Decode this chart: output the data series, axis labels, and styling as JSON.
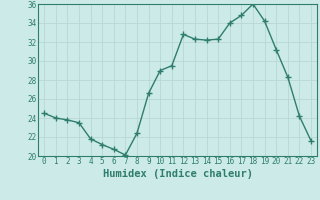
{
  "x": [
    0,
    1,
    2,
    3,
    4,
    5,
    6,
    7,
    8,
    9,
    10,
    11,
    12,
    13,
    14,
    15,
    16,
    17,
    18,
    19,
    20,
    21,
    22,
    23
  ],
  "y": [
    24.5,
    24.0,
    23.8,
    23.5,
    21.8,
    21.2,
    20.7,
    20.1,
    22.4,
    26.6,
    29.0,
    29.5,
    32.8,
    32.3,
    32.2,
    32.3,
    34.0,
    34.8,
    36.0,
    34.2,
    31.2,
    28.3,
    24.2,
    21.6
  ],
  "xlabel": "Humidex (Indice chaleur)",
  "ylim": [
    20,
    36
  ],
  "xlim": [
    -0.5,
    23.5
  ],
  "yticks": [
    20,
    22,
    24,
    26,
    28,
    30,
    32,
    34,
    36
  ],
  "xticks": [
    0,
    1,
    2,
    3,
    4,
    5,
    6,
    7,
    8,
    9,
    10,
    11,
    12,
    13,
    14,
    15,
    16,
    17,
    18,
    19,
    20,
    21,
    22,
    23
  ],
  "xtick_labels": [
    "0",
    "1",
    "2",
    "3",
    "4",
    "5",
    "6",
    "7",
    "8",
    "9",
    "10",
    "11",
    "12",
    "13",
    "14",
    "15",
    "16",
    "17",
    "18",
    "19",
    "20",
    "21",
    "22",
    "23"
  ],
  "line_color": "#2e7d6e",
  "marker": "+",
  "marker_size": 4,
  "linewidth": 1.0,
  "bg_color": "#cceae7",
  "grid_color": "#b8d8d4",
  "xlabel_fontsize": 7.5,
  "tick_fontsize": 5.5
}
